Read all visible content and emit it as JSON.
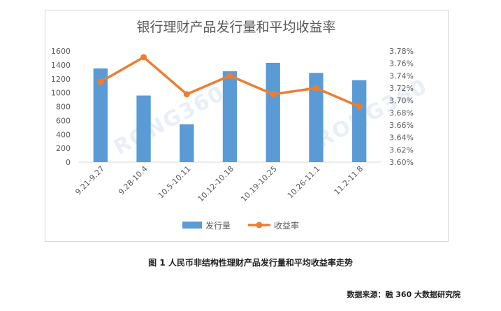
{
  "chart_data": {
    "type": "bar+line",
    "title": "银行理财产品发行量和平均收益率",
    "categories": [
      "9.21-9.27",
      "9.28-10.4",
      "10.5-10.11",
      "10.12-10.18",
      "10.19-10.25",
      "10.26-11.1",
      "11.2-11.8"
    ],
    "series": [
      {
        "name": "发行量",
        "type": "bar",
        "axis": "left",
        "color": "#5b9bd5",
        "values": [
          1350,
          960,
          545,
          1310,
          1430,
          1285,
          1180
        ]
      },
      {
        "name": "收益率",
        "type": "line",
        "axis": "right",
        "color": "#ed7d31",
        "values": [
          3.73,
          3.77,
          3.71,
          3.74,
          3.71,
          3.72,
          3.69
        ]
      }
    ],
    "left_axis": {
      "min": 0,
      "max": 1600,
      "step": 200,
      "ticks": [
        "0",
        "200",
        "400",
        "600",
        "800",
        "1000",
        "1200",
        "1400",
        "1600"
      ]
    },
    "right_axis": {
      "min": 3.6,
      "max": 3.78,
      "step": 0.02,
      "ticks": [
        "3.60%",
        "3.62%",
        "3.64%",
        "3.66%",
        "3.68%",
        "3.70%",
        "3.72%",
        "3.74%",
        "3.76%",
        "3.78%"
      ]
    },
    "grid": false,
    "legend_position": "bottom"
  },
  "watermark": "RONG360",
  "caption": "图 1  人民币非结构性理财产品发行量和平均收益率走势",
  "source": "数据来源：融 360 大数据研究院"
}
